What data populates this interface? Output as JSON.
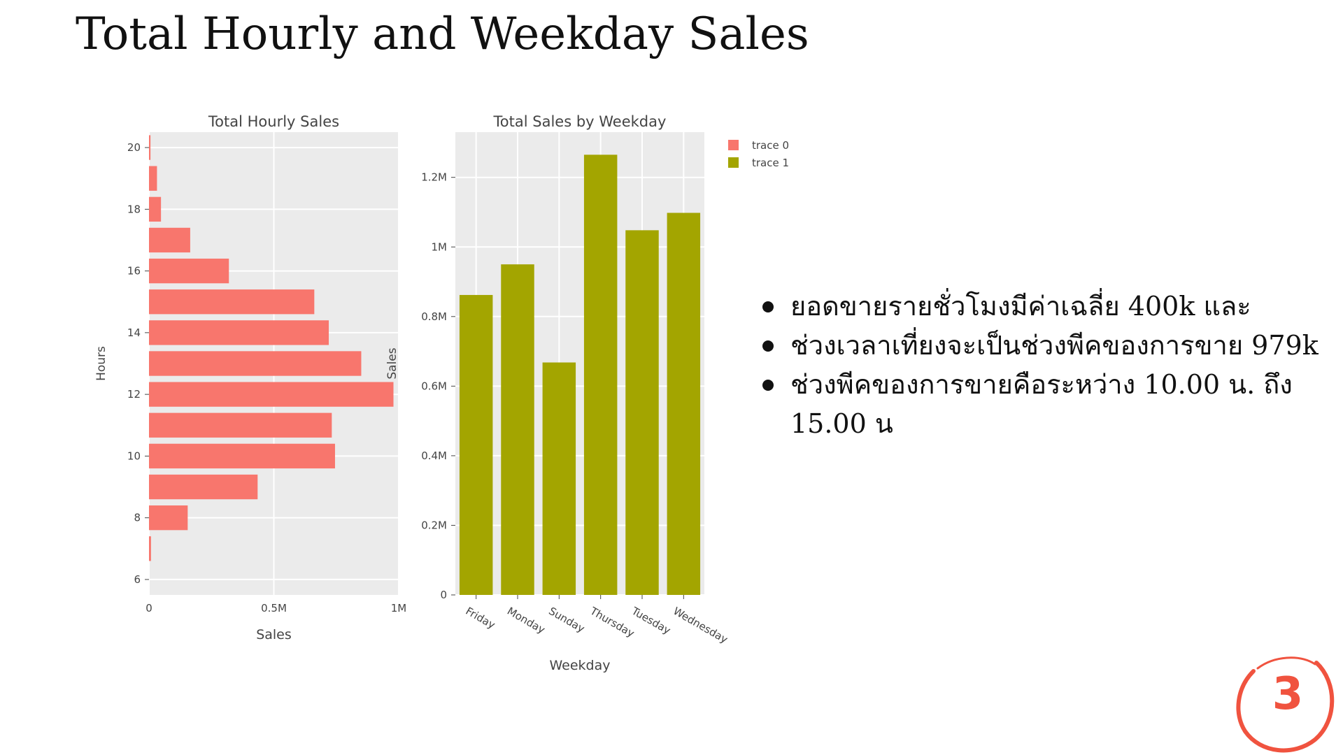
{
  "slide": {
    "title": "Total Hourly and Weekday Sales",
    "bullets": [
      "ยอดขายรายชั่วโมงมีค่าเฉลี่ย 400k และ",
      "ช่วงเวลาเที่ยงจะเป็นช่วงพีคของการขาย 979k",
      "ช่วงพีคของการขายคือระหว่าง 10.00 น. ถึง 15.00 น"
    ],
    "page_number": "3",
    "accent_color": "#f0533f"
  },
  "chart_data": [
    {
      "type": "bar",
      "orientation": "horizontal",
      "title": "Total Hourly Sales",
      "xlabel": "Sales",
      "ylabel": "Hours",
      "x_ticks": [
        {
          "value": 0,
          "label": "0"
        },
        {
          "value": 500000,
          "label": "0.5M"
        },
        {
          "value": 1000000,
          "label": "1M"
        }
      ],
      "y_ticks": [
        6,
        8,
        10,
        12,
        14,
        16,
        18,
        20
      ],
      "xlim": [
        0,
        1000000
      ],
      "ylim": [
        5.5,
        20.5
      ],
      "grid": true,
      "series": [
        {
          "name": "trace 0",
          "color": "#f8766d",
          "categories": [
            7,
            8,
            9,
            10,
            11,
            12,
            13,
            14,
            15,
            16,
            17,
            18,
            19,
            20
          ],
          "values": [
            8000,
            155000,
            435000,
            745000,
            732000,
            979000,
            850000,
            720000,
            662000,
            320000,
            165000,
            48000,
            32000,
            6000
          ]
        }
      ]
    },
    {
      "type": "bar",
      "orientation": "vertical",
      "title": "Total Sales by Weekday",
      "xlabel": "Weekday",
      "ylabel": "Sales",
      "y_ticks": [
        {
          "value": 0,
          "label": "0"
        },
        {
          "value": 200000,
          "label": "0.2M"
        },
        {
          "value": 400000,
          "label": "0.4M"
        },
        {
          "value": 600000,
          "label": "0.6M"
        },
        {
          "value": 800000,
          "label": "0.8M"
        },
        {
          "value": 1000000,
          "label": "1M"
        },
        {
          "value": 1200000,
          "label": "1.2M"
        }
      ],
      "ylim": [
        0,
        1330000
      ],
      "grid": true,
      "categories": [
        "Friday",
        "Monday",
        "Sunday",
        "Thursday",
        "Tuesday",
        "Wednesday"
      ],
      "series": [
        {
          "name": "trace 1",
          "color": "#a3a500",
          "values": [
            862000,
            950000,
            668000,
            1265000,
            1048000,
            1098000
          ]
        }
      ]
    }
  ],
  "legend": {
    "placement": "right",
    "items": [
      {
        "label": "trace 0",
        "color": "#f8766d"
      },
      {
        "label": "trace 1",
        "color": "#a3a500"
      }
    ]
  }
}
